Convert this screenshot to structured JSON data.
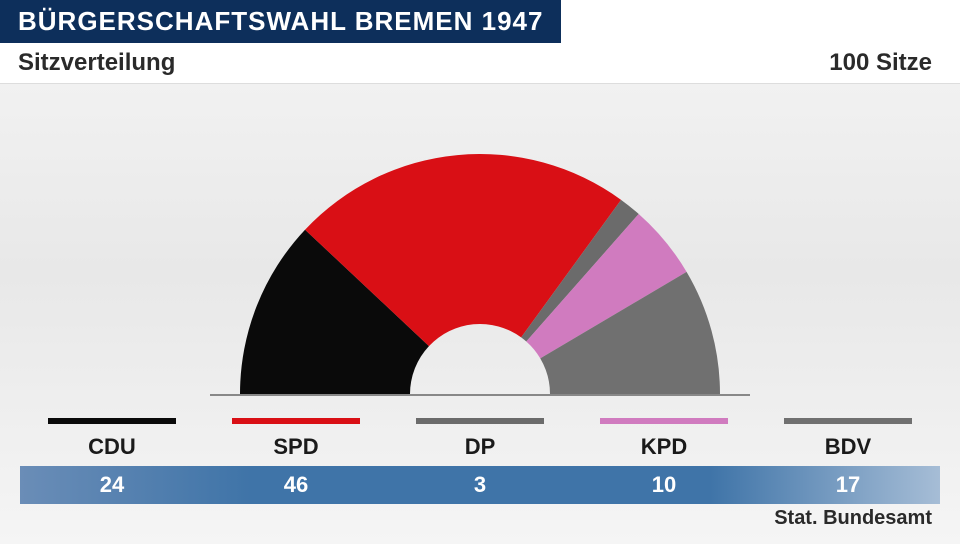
{
  "title": "BÜRGERSCHAFTSWAHL BREMEN 1947",
  "subtitle": "Sitzverteilung",
  "total_label": "100 Sitze",
  "source": "Stat. Bundesamt",
  "chart": {
    "type": "semicircle-donut",
    "outer_radius": 240,
    "inner_radius": 70,
    "background": "#f0f0f0",
    "total_seats": 100,
    "parties": [
      {
        "name": "CDU",
        "seats": 24,
        "color": "#0a0a0a"
      },
      {
        "name": "SPD",
        "seats": 46,
        "color": "#d90f15"
      },
      {
        "name": "DP",
        "seats": 3,
        "color": "#6b6b6b"
      },
      {
        "name": "KPD",
        "seats": 10,
        "color": "#d07bbf"
      },
      {
        "name": "BDV",
        "seats": 17,
        "color": "#707070"
      }
    ],
    "title_fontsize": 26,
    "subtitle_fontsize": 24,
    "legend_fontsize": 22,
    "value_fontsize": 22,
    "title_bg": "#0d2f5b",
    "title_color": "#ffffff",
    "value_bar_color": "#3f74a8"
  }
}
